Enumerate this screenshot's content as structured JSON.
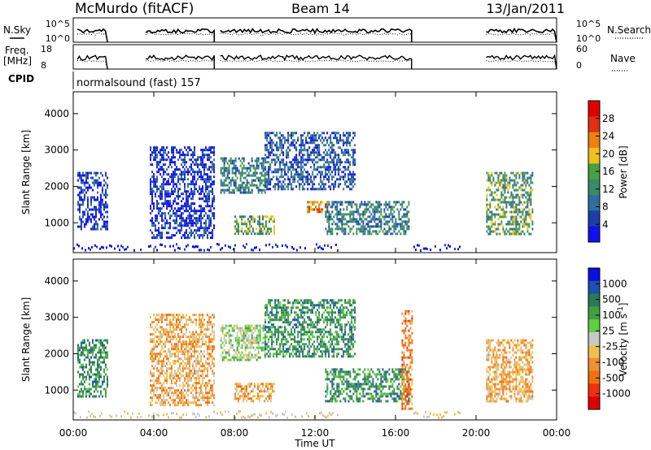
{
  "header": {
    "title": "McMurdo (fitACF)",
    "beam": "Beam 14",
    "date": "13/Jan/2011"
  },
  "top_panels": {
    "nsky_label": "N.Sky",
    "nsearch_label": "N.Search",
    "noise_ticks": [
      "10^5",
      "10^0"
    ],
    "freq_label": "Freq.",
    "freq_unit": "[MHz]",
    "freq_ticks": [
      "18",
      "8"
    ],
    "nave_label": "Nave",
    "nave_ticks": [
      "60",
      "0"
    ],
    "cpid_label": "CPID",
    "cpid_value": "normalsound (fast) 157"
  },
  "x_axis": {
    "title": "Time UT",
    "ticks": [
      "00:00",
      "04:00",
      "08:00",
      "12:00",
      "16:00",
      "20:00",
      "00:00"
    ]
  },
  "colors": {
    "power": [
      "#1010f0",
      "#1a40a8",
      "#2e6e9e",
      "#3a8a6a",
      "#48a040",
      "#f0c020",
      "#f08010",
      "#e03010",
      "#e00000"
    ],
    "velocity": [
      "#0a10e0",
      "#1e50b0",
      "#2a7a5a",
      "#40a040",
      "#60d040",
      "#c8c8c8",
      "#f0c050",
      "#f09030",
      "#f07010",
      "#f03010",
      "#e00000"
    ]
  },
  "chart_data": [
    {
      "type": "heatmap",
      "title": "",
      "xlabel": "",
      "ylabel": "Slant Range [km]",
      "yticks": [
        "1000",
        "2000",
        "3000",
        "4000"
      ],
      "xlim_hours": [
        0,
        24
      ],
      "ylim_km": [
        180,
        4600
      ],
      "colorbar_label": "Power [dB]",
      "colorbar_ticks": [
        "4",
        "8",
        "12",
        "16",
        "20",
        "24",
        "28"
      ],
      "colorbar_range": [
        0,
        30
      ],
      "echo_regions": [
        {
          "t0": 0.2,
          "t1": 1.7,
          "r0": 800,
          "r1": 2400,
          "level": 8
        },
        {
          "t0": 3.8,
          "t1": 7.0,
          "r0": 600,
          "r1": 3100,
          "level": 8
        },
        {
          "t0": 7.3,
          "t1": 9.5,
          "r0": 1800,
          "r1": 2800,
          "level": 16
        },
        {
          "t0": 8.0,
          "t1": 10.0,
          "r0": 700,
          "r1": 1200,
          "level": 20
        },
        {
          "t0": 9.5,
          "t1": 14.0,
          "r0": 1900,
          "r1": 3500,
          "level": 12
        },
        {
          "t0": 11.6,
          "t1": 12.6,
          "r0": 1300,
          "r1": 1600,
          "level": 28
        },
        {
          "t0": 12.5,
          "t1": 16.7,
          "r0": 700,
          "r1": 1600,
          "level": 16
        },
        {
          "t0": 20.5,
          "t1": 22.8,
          "r0": 700,
          "r1": 2400,
          "level": 20
        }
      ]
    },
    {
      "type": "heatmap",
      "title": "",
      "xlabel": "Time UT",
      "ylabel": "Slant Range [km]",
      "yticks": [
        "1000",
        "2000",
        "3000",
        "4000"
      ],
      "xlim_hours": [
        0,
        24
      ],
      "ylim_km": [
        180,
        4600
      ],
      "colorbar_label": "Velocity [m s^-1]",
      "colorbar_ticks": [
        "1000",
        "500",
        "100",
        "25",
        "-25",
        "-100",
        "-500",
        "-1000"
      ],
      "echo_regions": [
        {
          "t0": 0.2,
          "t1": 1.7,
          "r0": 800,
          "r1": 2400,
          "level": 100
        },
        {
          "t0": 3.8,
          "t1": 7.0,
          "r0": 600,
          "r1": 3100,
          "level": -100
        },
        {
          "t0": 7.3,
          "t1": 9.5,
          "r0": 1800,
          "r1": 2800,
          "level": 25
        },
        {
          "t0": 8.0,
          "t1": 10.0,
          "r0": 700,
          "r1": 1200,
          "level": -100
        },
        {
          "t0": 9.5,
          "t1": 14.0,
          "r0": 1900,
          "r1": 3500,
          "level": 100
        },
        {
          "t0": 12.5,
          "t1": 16.7,
          "r0": 700,
          "r1": 1600,
          "level": 100
        },
        {
          "t0": 16.3,
          "t1": 16.8,
          "r0": 500,
          "r1": 3200,
          "level": -500
        },
        {
          "t0": 20.5,
          "t1": 22.8,
          "r0": 700,
          "r1": 2400,
          "level": -100
        }
      ]
    }
  ]
}
